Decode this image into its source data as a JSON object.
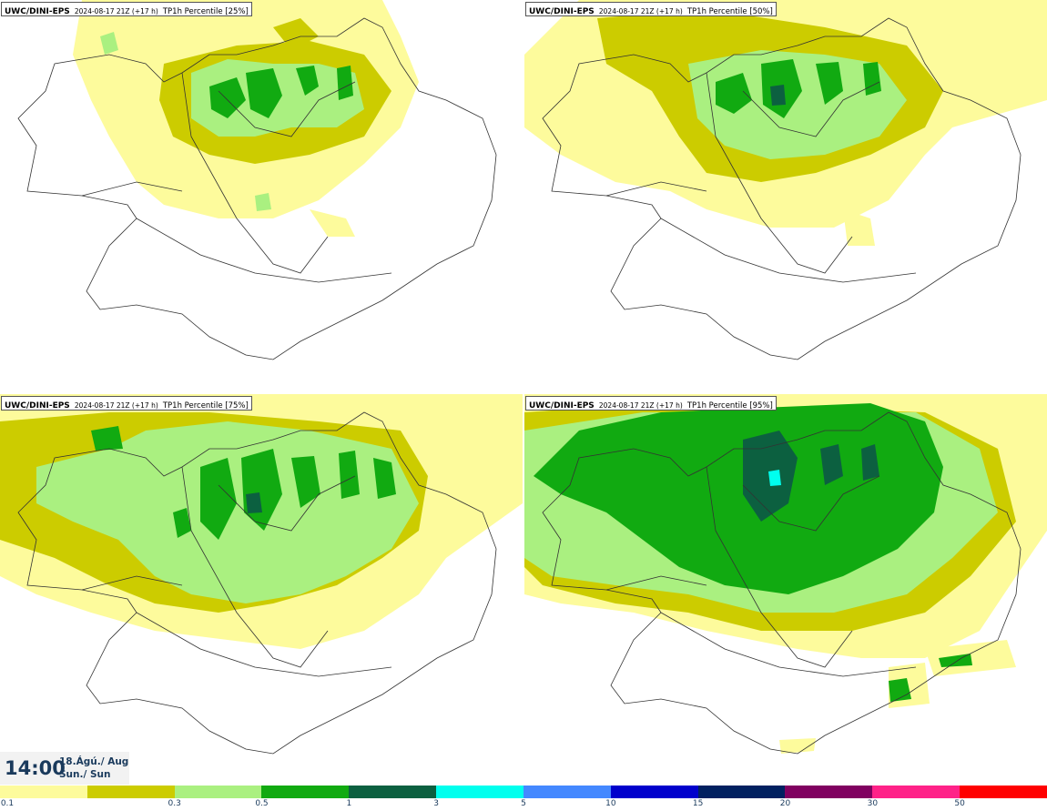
{
  "panels": [
    {
      "product": "UWC/DINI-EPS",
      "run": "2024-08-17 21Z (+17 h)",
      "variable": "TP1h Percentile [25%]"
    },
    {
      "product": "UWC/DINI-EPS",
      "run": "2024-08-17 21Z (+17 h)",
      "variable": "TP1h Percentile [50%]"
    },
    {
      "product": "UWC/DINI-EPS",
      "run": "2024-08-17 21Z (+17 h)",
      "variable": "TP1h Percentile [75%]"
    },
    {
      "product": "UWC/DINI-EPS",
      "run": "2024-08-17 21Z (+17 h)",
      "variable": "TP1h Percentile [95%]"
    }
  ],
  "valid_time": {
    "time": "14:00",
    "date_line1": "18.Ágú./ Aug",
    "date_line2": "Sun./ Sun"
  },
  "legend": {
    "colors": [
      "#fdfb9c",
      "#cccc00",
      "#aaf080",
      "#11aa11",
      "#0c6040",
      "#00ffee",
      "#4488ff",
      "#0000cc",
      "#002060",
      "#800060",
      "#ff2288",
      "#ff0000"
    ],
    "labels": [
      "0.1",
      "0.3",
      "0.5",
      "1",
      "3",
      "5",
      "10",
      "15",
      "20",
      "30",
      "50"
    ]
  },
  "colors": {
    "land_outline": "#333333",
    "background": "#ffffff",
    "text": "#1a3a5c"
  }
}
